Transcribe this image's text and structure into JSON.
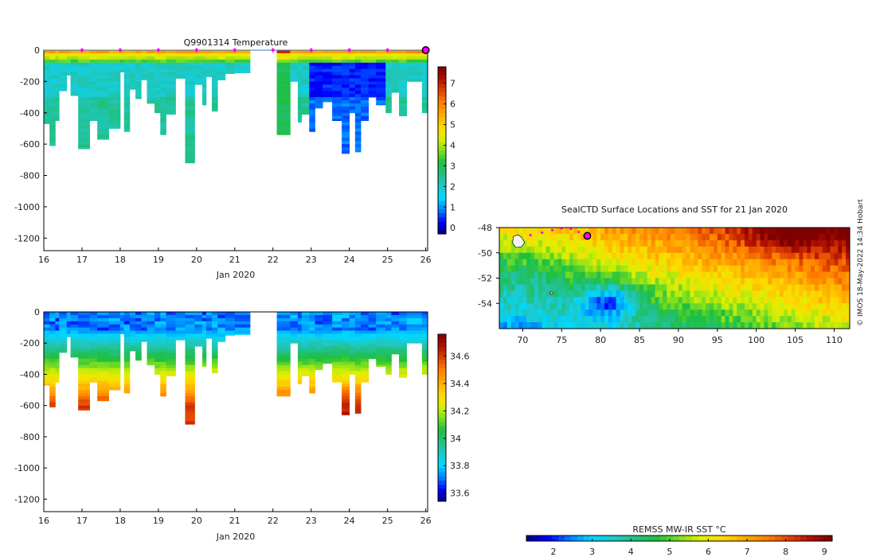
{
  "colors": {
    "jet": [
      "#00007f",
      "#0000ff",
      "#007fff",
      "#00d8ff",
      "#1ec8c8",
      "#22c080",
      "#1fbf3f",
      "#7fdf1f",
      "#dfef00",
      "#ffd700",
      "#ffaa00",
      "#ff7f00",
      "#e14500",
      "#b01000",
      "#7f0000"
    ],
    "marker": "#ff00ff"
  },
  "chart_data": [
    {
      "id": "temperature",
      "type": "heatmap",
      "title": "Q9901314  Temperature",
      "xlabel": "Jan 2020",
      "ylabel": "",
      "xlim": [
        16,
        26.05
      ],
      "ylim": [
        -1280,
        0
      ],
      "xticks": [
        "16",
        "17",
        "18",
        "19",
        "20",
        "21",
        "22",
        "23",
        "24",
        "25",
        "26"
      ],
      "yticks": [
        "0",
        "-200",
        "-400",
        "-600",
        "-800",
        "-1000",
        "-1200"
      ],
      "colorbar": {
        "ticks": [
          "0",
          "1",
          "2",
          "3",
          "4",
          "5",
          "6",
          "7"
        ],
        "clim": [
          -0.3,
          7.8
        ]
      },
      "profile_markers_days": [
        17,
        18,
        19,
        20,
        21,
        22,
        23,
        24,
        25
      ],
      "last_position_day": 26,
      "gap": [
        21.4,
        22.1
      ],
      "profiles": [
        {
          "t": [
            16.0,
            16.15
          ],
          "d": 470
        },
        {
          "t": [
            16.15,
            16.3
          ],
          "d": 610
        },
        {
          "t": [
            16.3,
            16.4
          ],
          "d": 450
        },
        {
          "t": [
            16.4,
            16.6
          ],
          "d": 260
        },
        {
          "t": [
            16.6,
            16.7
          ],
          "d": 160
        },
        {
          "t": [
            16.7,
            16.9
          ],
          "d": 290
        },
        {
          "t": [
            16.9,
            17.2
          ],
          "d": 630
        },
        {
          "t": [
            17.2,
            17.4
          ],
          "d": 450
        },
        {
          "t": [
            17.4,
            17.7
          ],
          "d": 570
        },
        {
          "t": [
            17.7,
            18.0
          ],
          "d": 500
        },
        {
          "t": [
            18.0,
            18.1
          ],
          "d": 140
        },
        {
          "t": [
            18.1,
            18.25
          ],
          "d": 520
        },
        {
          "t": [
            18.25,
            18.4
          ],
          "d": 250
        },
        {
          "t": [
            18.4,
            18.55
          ],
          "d": 310
        },
        {
          "t": [
            18.55,
            18.7
          ],
          "d": 190
        },
        {
          "t": [
            18.7,
            18.9
          ],
          "d": 340
        },
        {
          "t": [
            18.9,
            19.05
          ],
          "d": 400
        },
        {
          "t": [
            19.05,
            19.2
          ],
          "d": 540
        },
        {
          "t": [
            19.2,
            19.45
          ],
          "d": 410
        },
        {
          "t": [
            19.45,
            19.7
          ],
          "d": 180
        },
        {
          "t": [
            19.7,
            19.95
          ],
          "d": 720
        },
        {
          "t": [
            19.95,
            20.15
          ],
          "d": 220
        },
        {
          "t": [
            20.15,
            20.25
          ],
          "d": 350
        },
        {
          "t": [
            20.25,
            20.4
          ],
          "d": 170
        },
        {
          "t": [
            20.4,
            20.55
          ],
          "d": 390
        },
        {
          "t": [
            20.55,
            20.75
          ],
          "d": 190
        },
        {
          "t": [
            20.75,
            21.0
          ],
          "d": 150
        },
        {
          "t": [
            21.0,
            21.4
          ],
          "d": 145
        },
        {
          "t": [
            22.1,
            22.45
          ],
          "d": 540
        },
        {
          "t": [
            22.45,
            22.65
          ],
          "d": 200
        },
        {
          "t": [
            22.65,
            22.75
          ],
          "d": 460
        },
        {
          "t": [
            22.75,
            22.95
          ],
          "d": 410
        },
        {
          "t": [
            22.95,
            23.1
          ],
          "d": 520
        },
        {
          "t": [
            23.1,
            23.3
          ],
          "d": 370
        },
        {
          "t": [
            23.3,
            23.55
          ],
          "d": 330
        },
        {
          "t": [
            23.55,
            23.8
          ],
          "d": 450
        },
        {
          "t": [
            23.8,
            24.0
          ],
          "d": 660
        },
        {
          "t": [
            24.0,
            24.15
          ],
          "d": 400
        },
        {
          "t": [
            24.15,
            24.3
          ],
          "d": 650
        },
        {
          "t": [
            24.3,
            24.5
          ],
          "d": 450
        },
        {
          "t": [
            24.5,
            24.7
          ],
          "d": 300
        },
        {
          "t": [
            24.7,
            24.95
          ],
          "d": 350
        },
        {
          "t": [
            24.95,
            25.1
          ],
          "d": 400
        },
        {
          "t": [
            25.1,
            25.3
          ],
          "d": 270
        },
        {
          "t": [
            25.3,
            25.5
          ],
          "d": 420
        },
        {
          "t": [
            25.5,
            25.9
          ],
          "d": 200
        },
        {
          "t": [
            25.9,
            26.05
          ],
          "d": 400
        }
      ]
    },
    {
      "id": "salinity",
      "type": "heatmap",
      "title": "",
      "xlabel": "Jan 2020",
      "ylabel": "",
      "xlim": [
        16,
        26.05
      ],
      "ylim": [
        -1280,
        0
      ],
      "xticks": [
        "16",
        "17",
        "18",
        "19",
        "20",
        "21",
        "22",
        "23",
        "24",
        "25",
        "26"
      ],
      "yticks": [
        "0",
        "-200",
        "-400",
        "-600",
        "-800",
        "-1000",
        "-1200"
      ],
      "colorbar": {
        "ticks": [
          "33.6",
          "33.8",
          "34",
          "34.2",
          "34.4",
          "34.6"
        ],
        "clim": [
          33.54,
          34.76
        ]
      }
    },
    {
      "id": "sst_map",
      "type": "heatmap",
      "title": "SealCTD Surface Locations and SST for 21 Jan 2020",
      "xlabel": "",
      "ylabel": "",
      "xlim": [
        67,
        112
      ],
      "ylim": [
        -56,
        -48
      ],
      "xticks": [
        "70",
        "75",
        "80",
        "85",
        "90",
        "95",
        "100",
        "105",
        "110"
      ],
      "yticks": [
        "-48",
        "-50",
        "-52",
        "-54"
      ],
      "colorbar": {
        "label": "REMSS MW-IR SST °C",
        "ticks": [
          "2",
          "3",
          "4",
          "5",
          "6",
          "7",
          "8",
          "9"
        ],
        "clim": [
          1.3,
          9.2
        ]
      },
      "track": [
        [
          71.0,
          -48.6
        ],
        [
          72.5,
          -48.4
        ],
        [
          73.8,
          -48.2
        ],
        [
          75.0,
          -48.05
        ],
        [
          76.2,
          -48.1
        ],
        [
          77.2,
          -48.35
        ],
        [
          78.3,
          -48.65
        ]
      ],
      "last_position": [
        78.3,
        -48.65
      ]
    }
  ],
  "credit": "© IMOS 18-May-2022 14:34 Hobart"
}
